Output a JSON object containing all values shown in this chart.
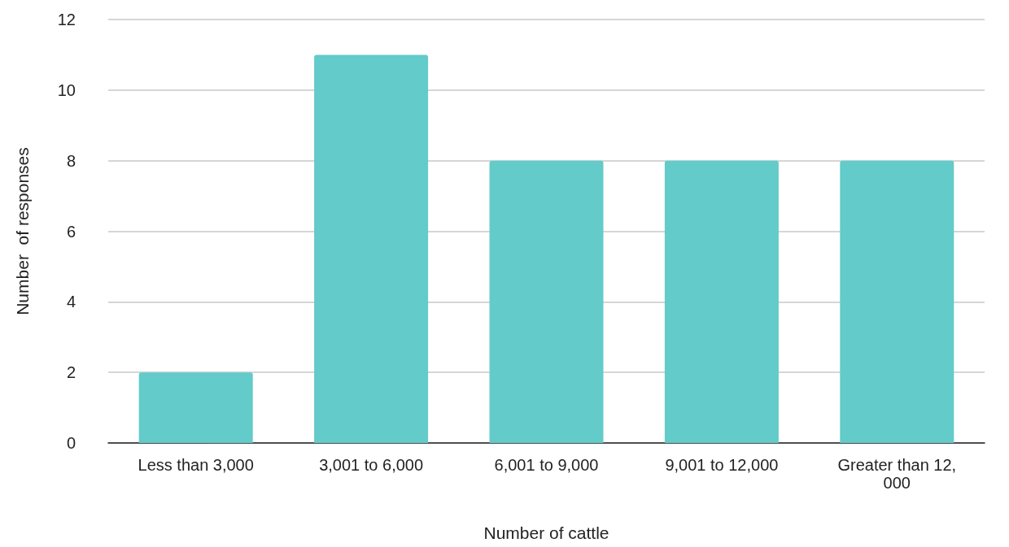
{
  "chart_data": {
    "type": "bar",
    "xlabel": "Number of cattle",
    "ylabel": "Number  of responses",
    "categories": [
      "Less than 3,000",
      "3,001 to 6,000",
      "6,001 to 9,000",
      "9,001 to 12,000",
      "Greater than 12,000"
    ],
    "values": [
      2,
      11,
      8,
      8,
      8
    ],
    "color": "#63cbc9",
    "ylim": [
      0,
      12
    ],
    "yticks": [
      0,
      2,
      4,
      6,
      8,
      10,
      12
    ],
    "grid": "y"
  }
}
